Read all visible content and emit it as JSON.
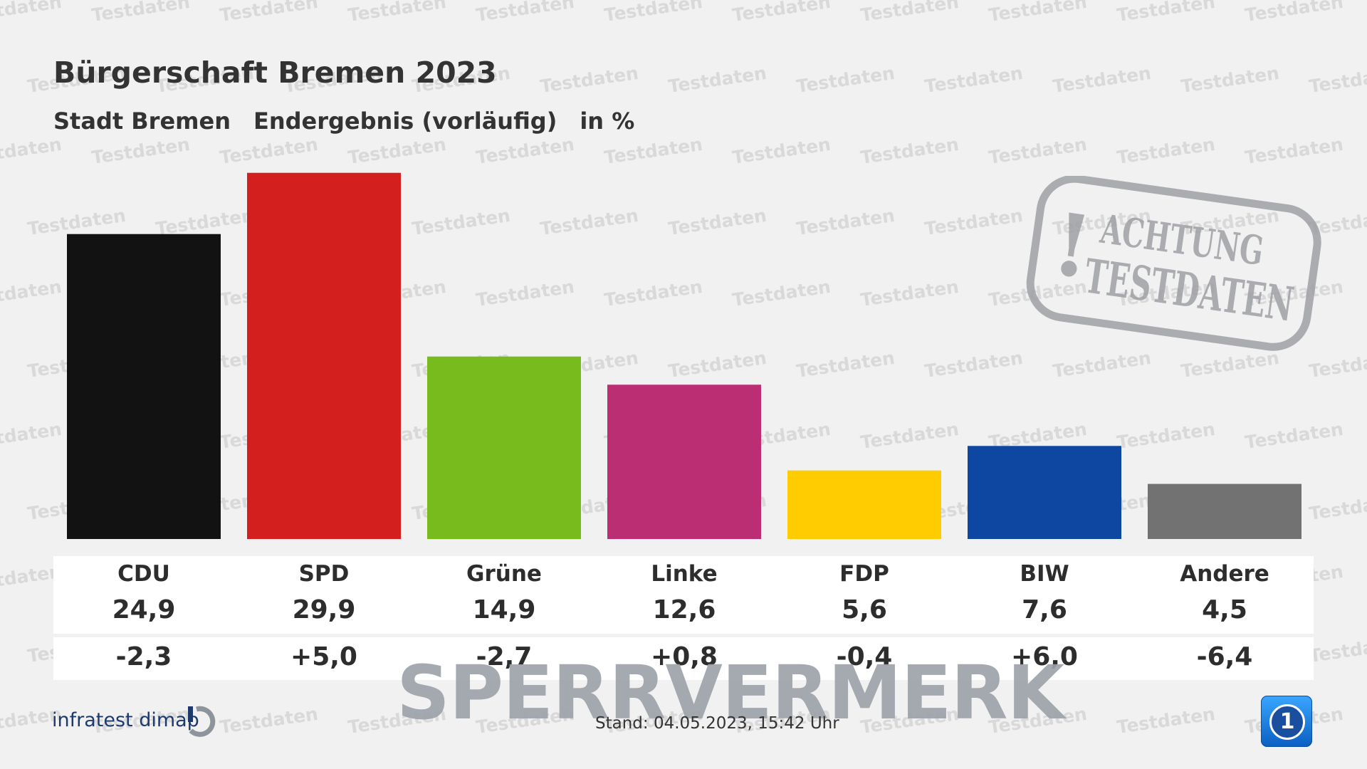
{
  "header": {
    "title": "Bürgerschaft Bremen 2023",
    "subtitle_area": "Stadt Bremen",
    "subtitle_result": "Endergebnis (vorläufig)",
    "subtitle_unit": "in %"
  },
  "chart_data": {
    "type": "bar",
    "title": "Bürgerschaft Bremen 2023",
    "categories": [
      "CDU",
      "SPD",
      "Grüne",
      "Linke",
      "FDP",
      "BIW",
      "Andere"
    ],
    "values": [
      24.9,
      29.9,
      14.9,
      12.6,
      5.6,
      7.6,
      4.5
    ],
    "value_labels": [
      "24,9",
      "29,9",
      "14,9",
      "12,6",
      "5,6",
      "7,6",
      "4,5"
    ],
    "changes": [
      "-2,3",
      "+5,0",
      "-2,7",
      "+0,8",
      "-0,4",
      "+6,0",
      "-6,4"
    ],
    "colors": [
      "#121212",
      "#d41f1f",
      "#78bb1c",
      "#bc2e74",
      "#ffcc02",
      "#0d47a1",
      "#727272"
    ],
    "ylim": [
      0,
      30
    ],
    "grid": false,
    "legend": "none"
  },
  "overlays": {
    "watermark_text": "Testdaten",
    "stamp_line1": "ACHTUNG",
    "stamp_line2": "TESTDATEN",
    "stamp_mark": "!",
    "sperrvermerk": "SPERRVERMERK"
  },
  "footer": {
    "source": "infratest dimap",
    "stand": "Stand:  04.05.2023, 15:42 Uhr",
    "badge_icon": "ard-logo-icon",
    "badge_text": "1"
  }
}
